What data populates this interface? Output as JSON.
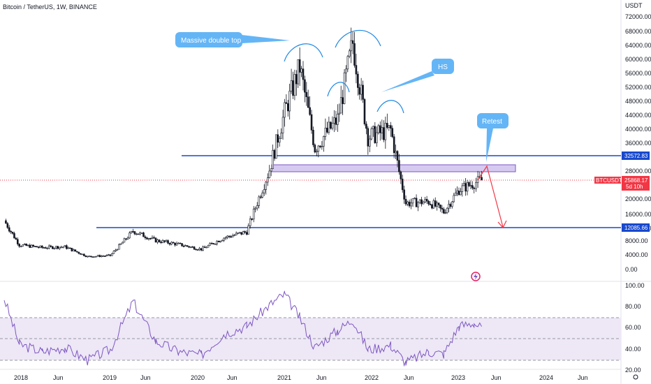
{
  "header": {
    "title": "Bitcoin / TetherUS, 1W, BINANCE"
  },
  "price_axis": {
    "currency": "USDT",
    "ticks": [
      "72000.00",
      "68000.00",
      "64000.00",
      "60000.00",
      "56000.00",
      "52000.00",
      "48000.00",
      "44000.00",
      "40000.00",
      "36000.00",
      "28000.00",
      "20000.00",
      "16000.00",
      "12000.00",
      "8000.00",
      "4000.00",
      "0.00"
    ],
    "level_labels": {
      "upper": "32572.83",
      "lower": "12085.66"
    },
    "last_price": {
      "symbol": "BTCUSDT",
      "value": "25868.17",
      "countdown": "5d 10h"
    }
  },
  "rsi_axis": {
    "ticks": [
      "100.00",
      "80.00",
      "60.00",
      "40.00",
      "20.00"
    ]
  },
  "time_axis": {
    "ticks": [
      "2018",
      "Jun",
      "2019",
      "Jun",
      "2020",
      "Jun",
      "2021",
      "Jun",
      "2022",
      "Jun",
      "2023",
      "Jun",
      "2024",
      "Jun"
    ]
  },
  "annotations": {
    "double_top": "Massive double top",
    "hs": "HS",
    "retest": "Retest"
  },
  "colors": {
    "up": "#26a69a",
    "down": "#ef5350",
    "candle": "#131722",
    "level_line": "#1848cc",
    "zone_fill": "#d1c4f0",
    "zone_stroke": "#7e57c2",
    "callout": "#64b5f6",
    "arc": "#1e88e5",
    "rsi_line": "#7e57c2",
    "rsi_band": "#ede7f6",
    "arrow": "#f23645",
    "price_tag": "#f23645",
    "level_tag": "#1848cc"
  },
  "chart_data": [
    {
      "type": "candlestick",
      "title": "Bitcoin / TetherUS, 1W, BINANCE",
      "scale": "log",
      "x": [
        "2018-01",
        "2018-03",
        "2018-06",
        "2018-09",
        "2018-12",
        "2019-03",
        "2019-06",
        "2019-09",
        "2019-12",
        "2020-03",
        "2020-06",
        "2020-09",
        "2020-12",
        "2021-02",
        "2021-04",
        "2021-06",
        "2021-09",
        "2021-11",
        "2022-01",
        "2022-04",
        "2022-06",
        "2022-09",
        "2022-11",
        "2023-01",
        "2023-03",
        "2023-04"
      ],
      "close": [
        14000,
        7000,
        6300,
        6500,
        3700,
        4000,
        11000,
        8300,
        7200,
        5800,
        9100,
        10800,
        29000,
        45000,
        58000,
        35000,
        43000,
        65000,
        38000,
        40000,
        19000,
        19500,
        16500,
        23000,
        25000,
        25868
      ],
      "horizontal_levels": [
        32572.83,
        12085.66
      ],
      "resistance_zone": [
        27500,
        30500
      ]
    },
    {
      "type": "line",
      "title": "RSI",
      "ylim": [
        20,
        100
      ],
      "bands": [
        30,
        50,
        70
      ],
      "x": [
        "2018-01",
        "2018-03",
        "2018-06",
        "2018-09",
        "2018-12",
        "2019-03",
        "2019-06",
        "2019-09",
        "2019-12",
        "2020-03",
        "2020-06",
        "2020-09",
        "2020-12",
        "2021-02",
        "2021-04",
        "2021-06",
        "2021-09",
        "2021-11",
        "2022-01",
        "2022-04",
        "2022-06",
        "2022-09",
        "2022-11",
        "2023-01",
        "2023-03",
        "2023-04"
      ],
      "values": [
        88,
        45,
        38,
        42,
        30,
        40,
        85,
        48,
        38,
        35,
        55,
        62,
        82,
        92,
        70,
        42,
        58,
        68,
        40,
        44,
        28,
        38,
        36,
        62,
        65,
        60
      ]
    }
  ]
}
